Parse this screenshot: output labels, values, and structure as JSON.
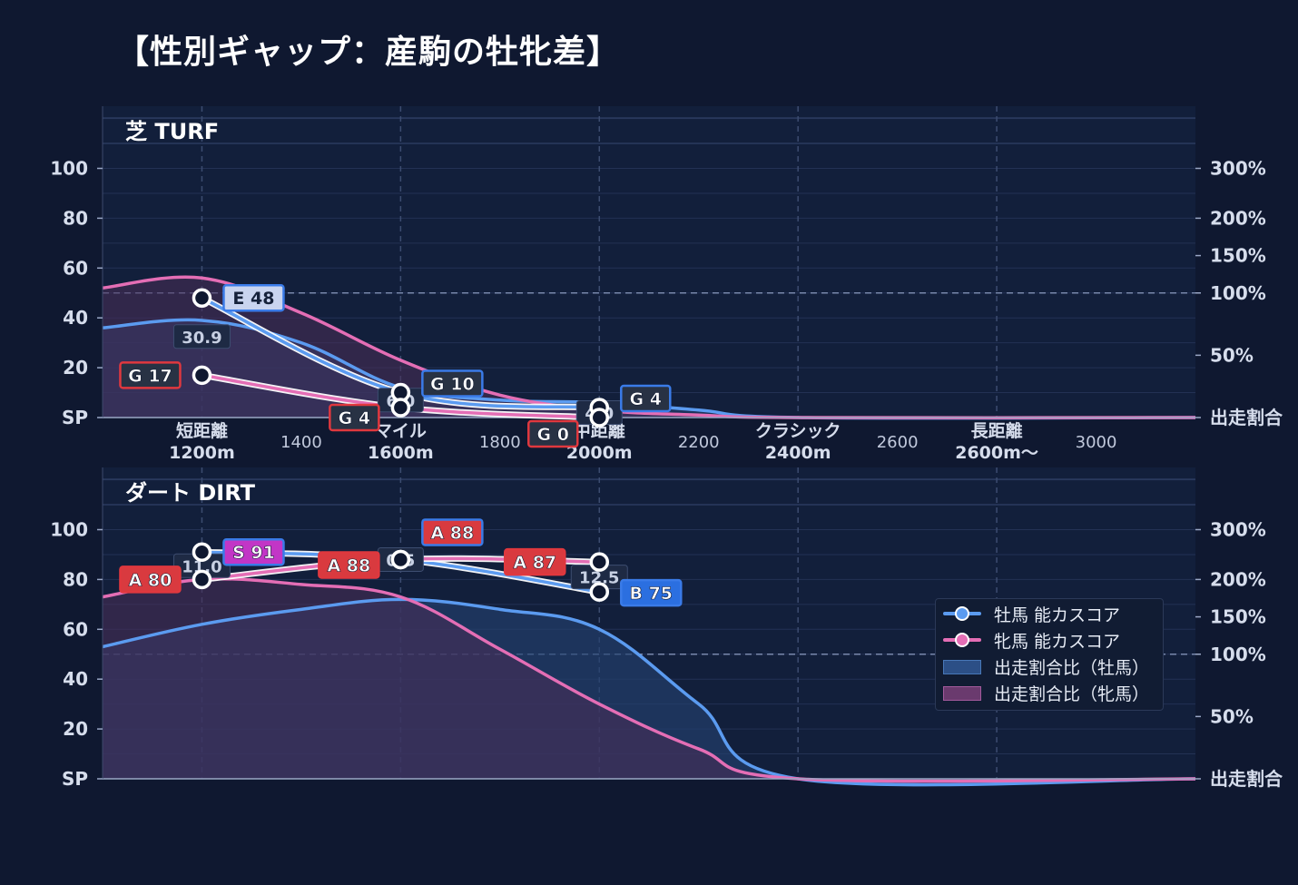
{
  "title": "【性別ギャップ：産駒の牡牝差】",
  "colors": {
    "background": "#0f1830",
    "panel": "#121f3b",
    "male": "#5b9bf0",
    "female": "#e46eb5",
    "male_fill": "#23406e",
    "female_fill": "#5c3560",
    "grade_S": "#c236c6",
    "grade_A": "#d93a3f",
    "grade_B": "#2b6fe0",
    "grade_E": "#c9d4ef",
    "grade_G": "#283244"
  },
  "legend": {
    "male_line": "牡馬 能カスコア",
    "female_line": "牝馬 能カスコア",
    "male_share": "出走割合比（牡馬）",
    "female_share": "出走割合比（牝馬）"
  },
  "chart_data": [
    {
      "type": "line",
      "title": "芝 TURF",
      "y_left": {
        "ticks": [
          "100",
          "80",
          "60",
          "40",
          "20",
          "SP"
        ],
        "values": [
          100,
          80,
          60,
          40,
          20,
          0
        ],
        "range": [
          0,
          120
        ]
      },
      "y_right": {
        "ticks": [
          "300%",
          "200%",
          "150%",
          "100%",
          "50%",
          "出走割合"
        ],
        "values": [
          300,
          200,
          150,
          100,
          50,
          0
        ]
      },
      "x_ticks": [
        {
          "x": 1200,
          "line1": "短距離",
          "line2": "1200m",
          "major": true
        },
        {
          "x": 1400,
          "line1": "",
          "line2": "1400",
          "major": false
        },
        {
          "x": 1600,
          "line1": "マイル",
          "line2": "1600m",
          "major": true
        },
        {
          "x": 1800,
          "line1": "",
          "line2": "1800",
          "major": false
        },
        {
          "x": 2000,
          "line1": "中距離",
          "line2": "2000m",
          "major": true
        },
        {
          "x": 2200,
          "line1": "",
          "line2": "2200",
          "major": false
        },
        {
          "x": 2400,
          "line1": "クラシック",
          "line2": "2400m",
          "major": true
        },
        {
          "x": 2600,
          "line1": "",
          "line2": "2600",
          "major": false
        },
        {
          "x": 2800,
          "line1": "長距離",
          "line2": "2600m〜",
          "major": true
        },
        {
          "x": 3000,
          "line1": "",
          "line2": "3000",
          "major": false
        }
      ],
      "series": [
        {
          "name": "牡馬 能カスコア",
          "kind": "score",
          "sex": "male",
          "points": [
            {
              "x": 1200,
              "y": 48,
              "label": "E 48",
              "grade": "E"
            },
            {
              "x": 1600,
              "y": 10,
              "label": "G 10",
              "grade": "G"
            },
            {
              "x": 2000,
              "y": 4,
              "label": "G 4",
              "grade": "G"
            }
          ]
        },
        {
          "name": "牝馬 能カスコア",
          "kind": "score",
          "sex": "female",
          "points": [
            {
              "x": 1200,
              "y": 17,
              "label": "G 17",
              "grade": "G"
            },
            {
              "x": 1600,
              "y": 4,
              "label": "G 4",
              "grade": "G"
            },
            {
              "x": 2000,
              "y": 0,
              "label": "G 0",
              "grade": "G"
            }
          ]
        },
        {
          "name": "出走割合比（牡馬）",
          "kind": "share",
          "sex": "male",
          "x": [
            1000,
            1200,
            1400,
            1600,
            1800,
            2000,
            2200,
            2400,
            3200
          ],
          "y": [
            36,
            39,
            30,
            12,
            7,
            6,
            3,
            0,
            0
          ]
        },
        {
          "name": "出走割合比（牝馬）",
          "kind": "share",
          "sex": "female",
          "x": [
            1000,
            1200,
            1400,
            1600,
            1800,
            2000,
            2200,
            2400,
            3200
          ],
          "y": [
            52,
            56,
            42,
            23,
            9,
            3,
            1,
            0,
            0
          ]
        }
      ],
      "gap_labels": [
        {
          "x": 1200,
          "text": "30.9"
        },
        {
          "x": 1600,
          "text": "6.0"
        },
        {
          "x": 2000,
          "text": "4.0"
        }
      ]
    },
    {
      "type": "line",
      "title": "ダート DIRT",
      "y_left": {
        "ticks": [
          "100",
          "80",
          "60",
          "40",
          "20",
          "SP"
        ],
        "values": [
          100,
          80,
          60,
          40,
          20,
          0
        ],
        "range": [
          0,
          120
        ]
      },
      "y_right": {
        "ticks": [
          "300%",
          "200%",
          "150%",
          "100%",
          "50%",
          "出走割合"
        ],
        "values": [
          300,
          200,
          150,
          100,
          50,
          0
        ]
      },
      "series": [
        {
          "name": "牡馬 能カスコア",
          "kind": "score",
          "sex": "male",
          "points": [
            {
              "x": 1200,
              "y": 91,
              "label": "S 91",
              "grade": "S"
            },
            {
              "x": 1600,
              "y": 88,
              "label": "A 88",
              "grade": "A"
            },
            {
              "x": 2000,
              "y": 75,
              "label": "B 75",
              "grade": "B"
            }
          ]
        },
        {
          "name": "牝馬 能カスコア",
          "kind": "score",
          "sex": "female",
          "points": [
            {
              "x": 1200,
              "y": 80,
              "label": "A 80",
              "grade": "A"
            },
            {
              "x": 1600,
              "y": 88,
              "label": "A 88",
              "grade": "A"
            },
            {
              "x": 2000,
              "y": 87,
              "label": "A 87",
              "grade": "A"
            }
          ]
        },
        {
          "name": "出走割合比（牡馬）",
          "kind": "share",
          "sex": "male",
          "x": [
            1000,
            1200,
            1400,
            1600,
            1800,
            2000,
            2200,
            2400,
            3200
          ],
          "y": [
            53,
            62,
            68,
            72,
            68,
            60,
            30,
            0,
            0
          ]
        },
        {
          "name": "出走割合比（牝馬）",
          "kind": "share",
          "sex": "female",
          "x": [
            1000,
            1200,
            1400,
            1600,
            1800,
            2000,
            2200,
            2400,
            3200
          ],
          "y": [
            73,
            80,
            78,
            73,
            52,
            30,
            12,
            0,
            0
          ]
        }
      ],
      "gap_labels": [
        {
          "x": 1200,
          "text": "11.0"
        },
        {
          "x": 1600,
          "text": "0.5"
        },
        {
          "x": 2000,
          "text": "12.5"
        }
      ]
    }
  ]
}
